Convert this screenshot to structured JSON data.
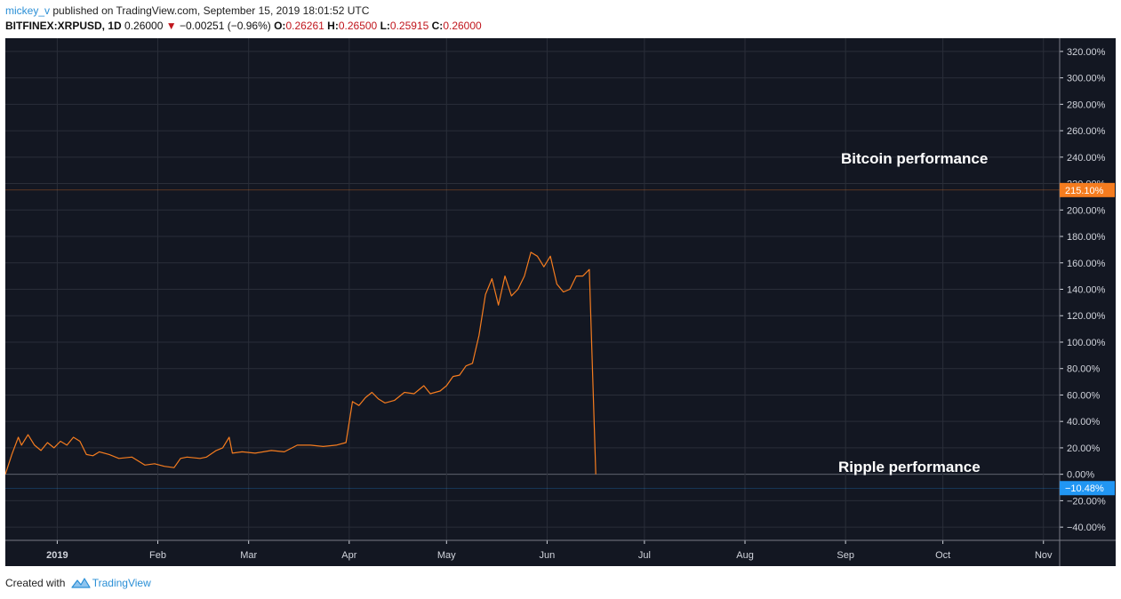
{
  "header": {
    "user": "mickey_v",
    "published_text": "published on TradingView.com, September 15, 2019 18:01:52 UTC",
    "symbol": "BITFINEX:XRPUSD, 1D",
    "last": "0.26000",
    "change_arrow": "▼",
    "change": "−0.00251 (−0.96%)",
    "o_label": "O:",
    "o_value": "0.26261",
    "h_label": "H:",
    "h_value": "0.26500",
    "l_label": "L:",
    "l_value": "0.25915",
    "c_label": "C:",
    "c_value": "0.26000"
  },
  "footer": {
    "created_with": "Created with",
    "brand": "TradingView",
    "logo_icon": "tradingview-logo-icon"
  },
  "colors": {
    "background": "#131722",
    "grid": "#2a2e39",
    "axis_text": "#d1d4dc",
    "bitcoin": "#f57c1f",
    "ripple": "#2196f3"
  },
  "chart_data": {
    "type": "line",
    "y_unit": "%",
    "ylim": [
      -50,
      330
    ],
    "y_ticks": [
      -40,
      -20,
      0,
      20,
      40,
      60,
      80,
      100,
      120,
      140,
      160,
      180,
      200,
      220,
      240,
      260,
      280,
      300,
      320
    ],
    "y_tick_labels": [
      "−40.00%",
      "−20.00%",
      "0.00%",
      "20.00%",
      "40.00%",
      "60.00%",
      "80.00%",
      "100.00%",
      "120.00%",
      "140.00%",
      "160.00%",
      "180.00%",
      "200.00%",
      "220.00%",
      "240.00%",
      "260.00%",
      "280.00%",
      "300.00%",
      "320.00%"
    ],
    "x_range": [
      "2018-12-16",
      "2019-11-06"
    ],
    "x_ticks": [
      {
        "date": "2019-01-01",
        "label": "2019",
        "bold": true
      },
      {
        "date": "2019-02-01",
        "label": "Feb"
      },
      {
        "date": "2019-03-01",
        "label": "Mar"
      },
      {
        "date": "2019-04-01",
        "label": "Apr"
      },
      {
        "date": "2019-05-01",
        "label": "May"
      },
      {
        "date": "2019-06-01",
        "label": "Jun"
      },
      {
        "date": "2019-07-01",
        "label": "Jul"
      },
      {
        "date": "2019-08-01",
        "label": "Aug"
      },
      {
        "date": "2019-09-01",
        "label": "Sep"
      },
      {
        "date": "2019-10-01",
        "label": "Oct"
      },
      {
        "date": "2019-11-01",
        "label": "Nov"
      }
    ],
    "grid": true,
    "series": [
      {
        "key": "bitcoin",
        "annotation": "Bitcoin performance",
        "last_label": "215.10%",
        "last_value": 215.1,
        "points": [
          [
            "2018-12-16",
            0
          ],
          [
            "2018-12-18",
            15
          ],
          [
            "2018-12-20",
            28
          ],
          [
            "2018-12-21",
            22
          ],
          [
            "2018-12-23",
            30
          ],
          [
            "2018-12-25",
            22
          ],
          [
            "2018-12-27",
            18
          ],
          [
            "2018-12-29",
            24
          ],
          [
            "2018-12-31",
            20
          ],
          [
            "2019-01-02",
            25
          ],
          [
            "2019-01-04",
            22
          ],
          [
            "2019-01-06",
            28
          ],
          [
            "2019-01-08",
            25
          ],
          [
            "2019-01-10",
            15
          ],
          [
            "2019-01-12",
            14
          ],
          [
            "2019-01-14",
            17
          ],
          [
            "2019-01-17",
            15
          ],
          [
            "2019-01-20",
            12
          ],
          [
            "2019-01-24",
            13
          ],
          [
            "2019-01-28",
            7
          ],
          [
            "2019-01-31",
            8
          ],
          [
            "2019-02-03",
            6
          ],
          [
            "2019-02-06",
            5
          ],
          [
            "2019-02-08",
            12
          ],
          [
            "2019-02-10",
            13
          ],
          [
            "2019-02-14",
            12
          ],
          [
            "2019-02-16",
            13
          ],
          [
            "2019-02-19",
            18
          ],
          [
            "2019-02-21",
            20
          ],
          [
            "2019-02-23",
            28
          ],
          [
            "2019-02-24",
            16
          ],
          [
            "2019-02-27",
            17
          ],
          [
            "2019-03-03",
            16
          ],
          [
            "2019-03-08",
            18
          ],
          [
            "2019-03-12",
            17
          ],
          [
            "2019-03-16",
            22
          ],
          [
            "2019-03-20",
            22
          ],
          [
            "2019-03-24",
            21
          ],
          [
            "2019-03-28",
            22
          ],
          [
            "2019-03-31",
            24
          ],
          [
            "2019-04-02",
            55
          ],
          [
            "2019-04-04",
            52
          ],
          [
            "2019-04-06",
            58
          ],
          [
            "2019-04-08",
            62
          ],
          [
            "2019-04-10",
            57
          ],
          [
            "2019-04-12",
            54
          ],
          [
            "2019-04-15",
            56
          ],
          [
            "2019-04-18",
            62
          ],
          [
            "2019-04-21",
            61
          ],
          [
            "2019-04-24",
            67
          ],
          [
            "2019-04-26",
            61
          ],
          [
            "2019-04-29",
            63
          ],
          [
            "2019-05-01",
            67
          ],
          [
            "2019-05-03",
            74
          ],
          [
            "2019-05-05",
            75
          ],
          [
            "2019-05-07",
            82
          ],
          [
            "2019-05-09",
            84
          ],
          [
            "2019-05-11",
            105
          ],
          [
            "2019-05-13",
            136
          ],
          [
            "2019-05-15",
            148
          ],
          [
            "2019-05-17",
            128
          ],
          [
            "2019-05-19",
            150
          ],
          [
            "2019-05-21",
            135
          ],
          [
            "2019-05-23",
            140
          ],
          [
            "2019-05-25",
            150
          ],
          [
            "2019-05-27",
            168
          ],
          [
            "2019-05-29",
            165
          ],
          [
            "2019-05-31",
            157
          ],
          [
            "2019-06-02",
            165
          ],
          [
            "2019-06-04",
            144
          ],
          [
            "2019-06-06",
            138
          ],
          [
            "2019-06-08",
            140
          ],
          [
            "2019-06-10",
            150
          ],
          [
            "2019-06-12",
            150
          ],
          [
            "2019-06-14",
            155
          ],
          [
            "2019-06-16,",
            0
          ]
        ]
      },
      {
        "key": "ripple",
        "annotation": "Ripple performance",
        "last_label": "−10.48%",
        "last_value": -10.48,
        "points": []
      }
    ]
  }
}
